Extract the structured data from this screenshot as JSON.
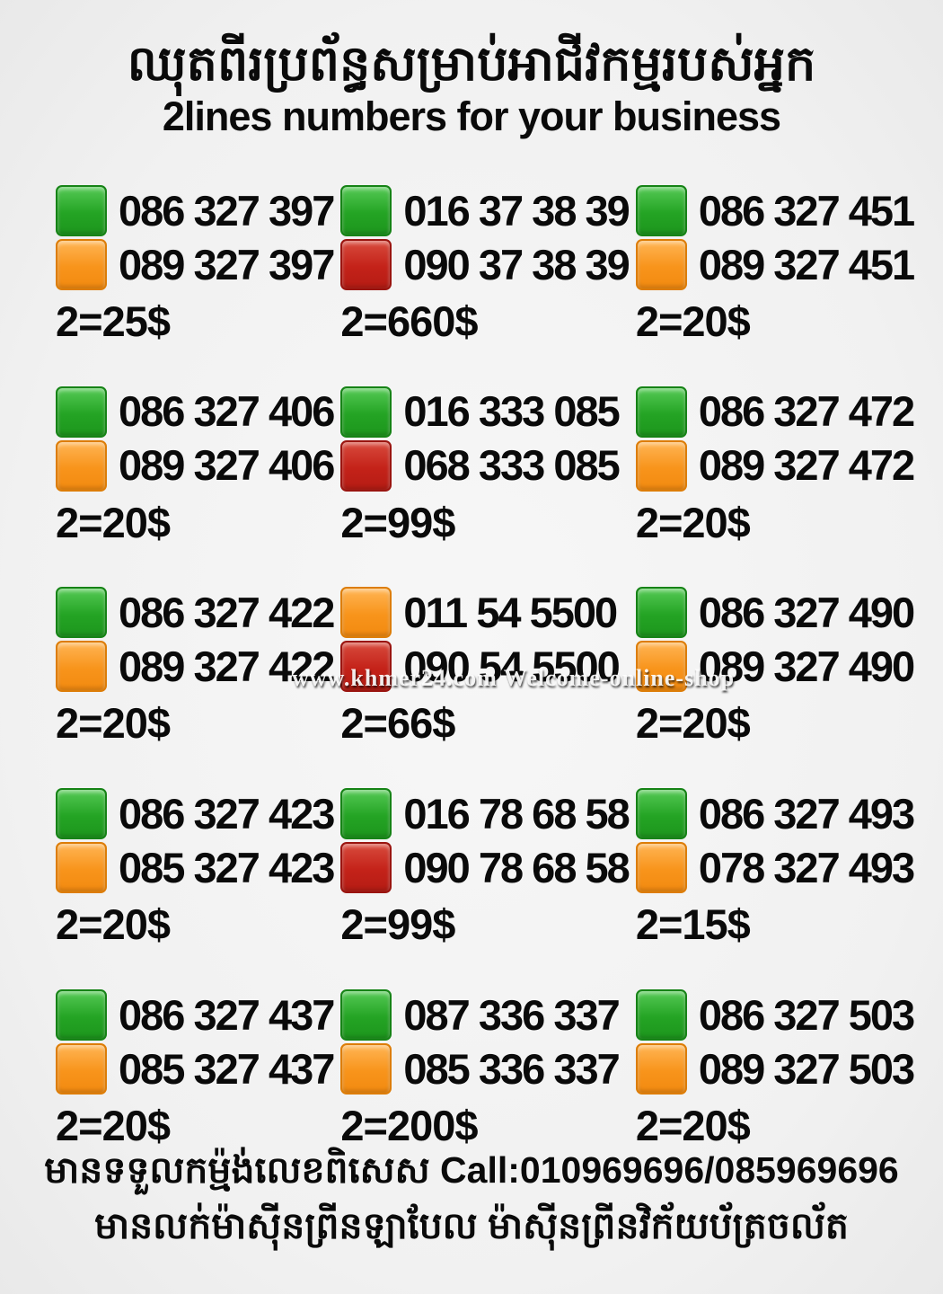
{
  "header": {
    "title_khmer": "ឈុតពីរប្រព័ន្ធសម្រាប់អាជីវកម្មរបស់អ្នក",
    "subtitle": "2lines numbers for your business"
  },
  "colors": {
    "green": "#24a424",
    "orange": "#f8941b",
    "red": "#c42219",
    "background": "#f1f1f1",
    "text": "#0a0a0a"
  },
  "watermark": "www.khmer24.com Welcome-online-shop",
  "listings": [
    {
      "lines": [
        {
          "color": "green",
          "number": "086 327 397"
        },
        {
          "color": "orange",
          "number": "089 327 397"
        }
      ],
      "price": "2=25$"
    },
    {
      "lines": [
        {
          "color": "green",
          "number": "016 37 38 39"
        },
        {
          "color": "red",
          "number": "090 37 38 39"
        }
      ],
      "price": "2=660$"
    },
    {
      "lines": [
        {
          "color": "green",
          "number": "086 327 451"
        },
        {
          "color": "orange",
          "number": "089 327 451"
        }
      ],
      "price": "2=20$"
    },
    {
      "lines": [
        {
          "color": "green",
          "number": "086 327 406"
        },
        {
          "color": "orange",
          "number": "089 327 406"
        }
      ],
      "price": "2=20$"
    },
    {
      "lines": [
        {
          "color": "green",
          "number": "016 333 085"
        },
        {
          "color": "red",
          "number": "068 333 085"
        }
      ],
      "price": "2=99$"
    },
    {
      "lines": [
        {
          "color": "green",
          "number": "086 327 472"
        },
        {
          "color": "orange",
          "number": "089 327 472"
        }
      ],
      "price": "2=20$"
    },
    {
      "lines": [
        {
          "color": "green",
          "number": "086 327 422"
        },
        {
          "color": "orange",
          "number": "089 327 422"
        }
      ],
      "price": "2=20$"
    },
    {
      "lines": [
        {
          "color": "orange",
          "number": "011 54 5500"
        },
        {
          "color": "red",
          "number": "090 54 5500"
        }
      ],
      "price": "2=66$"
    },
    {
      "lines": [
        {
          "color": "green",
          "number": "086 327 490"
        },
        {
          "color": "orange",
          "number": "089 327 490"
        }
      ],
      "price": "2=20$"
    },
    {
      "lines": [
        {
          "color": "green",
          "number": "086 327 423"
        },
        {
          "color": "orange",
          "number": "085 327 423"
        }
      ],
      "price": "2=20$"
    },
    {
      "lines": [
        {
          "color": "green",
          "number": "016 78 68 58"
        },
        {
          "color": "red",
          "number": "090 78 68 58"
        }
      ],
      "price": "2=99$"
    },
    {
      "lines": [
        {
          "color": "green",
          "number": "086 327 493"
        },
        {
          "color": "orange",
          "number": "078 327 493"
        }
      ],
      "price": "2=15$"
    },
    {
      "lines": [
        {
          "color": "green",
          "number": "086 327 437"
        },
        {
          "color": "orange",
          "number": "085 327 437"
        }
      ],
      "price": "2=20$"
    },
    {
      "lines": [
        {
          "color": "green",
          "number": "087 336 337"
        },
        {
          "color": "orange",
          "number": "085 336 337"
        }
      ],
      "price": "2=200$"
    },
    {
      "lines": [
        {
          "color": "green",
          "number": "086 327 503"
        },
        {
          "color": "orange",
          "number": "089 327 503"
        }
      ],
      "price": "2=20$"
    }
  ],
  "footer": {
    "line1": "មានទទួលកម្ម៉ង់លេខពិសេស Call:010969696/085969696",
    "line2": "មានលក់ម៉ាស៊ីនព្រីនឡាបែល ម៉ាស៊ីនព្រីនវិក័យប័ត្រចល័ត"
  }
}
